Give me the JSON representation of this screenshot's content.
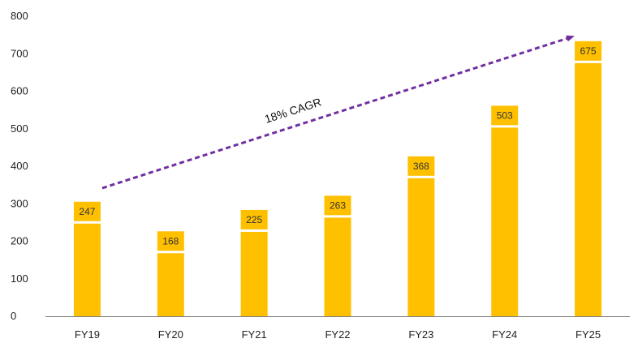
{
  "chart_data": {
    "type": "bar",
    "categories": [
      "FY19",
      "FY20",
      "FY21",
      "FY22",
      "FY23",
      "FY24",
      "FY25"
    ],
    "values": [
      247,
      168,
      225,
      263,
      368,
      503,
      675
    ],
    "title": "",
    "xlabel": "",
    "ylabel": "",
    "ylim": [
      0,
      800
    ],
    "yticks": [
      0,
      100,
      200,
      300,
      400,
      500,
      600,
      700,
      800
    ],
    "grid": false,
    "legend": "none",
    "data_labels": [
      "247",
      "168",
      "225",
      "263",
      "368",
      "503",
      "675"
    ],
    "annotations": [
      {
        "text": "18% CAGR",
        "type": "dashed-arrow",
        "from_category": "FY19",
        "to_category": "FY25"
      }
    ],
    "colors": {
      "bar": "#FFC000",
      "label_box": "#FFC000",
      "arrow": "#7030A0",
      "axis": "#7F7F7F"
    }
  }
}
